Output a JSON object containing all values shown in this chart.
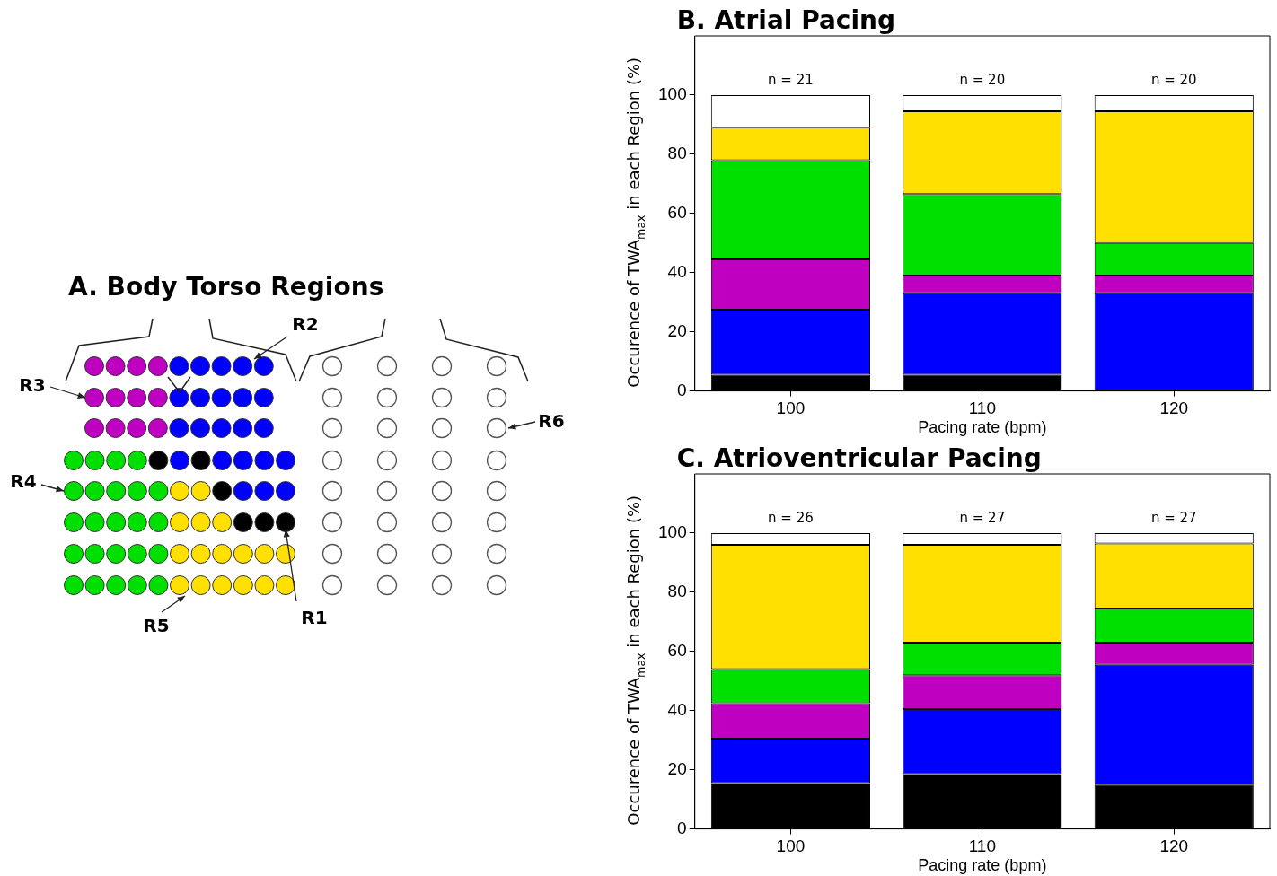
{
  "chart_data": [
    {
      "type": "other",
      "title": "A. Body Torso Regions",
      "annotations": [
        "R1",
        "R2",
        "R3",
        "R4",
        "R5",
        "R6"
      ]
    },
    {
      "type": "bar",
      "stacked": true,
      "title": "B. Atrial Pacing",
      "xlabel": "Pacing rate (bpm)",
      "ylabel": "Occurence of TWA$_{max}$ in each Region (%)",
      "categories": [
        "100",
        "110",
        "120"
      ],
      "series": [
        {
          "type": "bar",
          "color": "#000000",
          "values": [
            5.5,
            5.5,
            0
          ]
        },
        {
          "type": "bar",
          "color": "#0000ff",
          "values": [
            22,
            27.5,
            33
          ]
        },
        {
          "type": "bar",
          "color": "#c000c0",
          "values": [
            17,
            6,
            6
          ]
        },
        {
          "type": "bar",
          "color": "#00e000",
          "values": [
            33.5,
            27.5,
            11
          ]
        },
        {
          "type": "bar",
          "color": "#ffe000",
          "values": [
            11,
            28,
            44.5
          ]
        },
        {
          "type": "bar",
          "color": "#ffffff",
          "values": [
            11,
            5.5,
            5.5
          ]
        }
      ],
      "ylim": [
        0,
        120
      ],
      "yticks": [
        0,
        20,
        40,
        60,
        80,
        100
      ],
      "grid": false,
      "annotations": [
        {
          "text": "n = 21",
          "x": "100",
          "y": 100
        },
        {
          "text": "n = 20",
          "x": "110",
          "y": 100
        },
        {
          "text": "n = 20",
          "x": "120",
          "y": 100
        }
      ]
    },
    {
      "type": "bar",
      "stacked": true,
      "title": "C. Atrioventricular Pacing",
      "xlabel": "Pacing rate (bpm)",
      "ylabel": "Occurence of TWA$_{max}$ in each Region (%)",
      "categories": [
        "100",
        "110",
        "120"
      ],
      "series": [
        {
          "type": "bar",
          "color": "#000000",
          "values": [
            15.5,
            18.5,
            15
          ]
        },
        {
          "type": "bar",
          "color": "#0000ff",
          "values": [
            15,
            22,
            40.5
          ]
        },
        {
          "type": "bar",
          "color": "#c000c0",
          "values": [
            12,
            11.5,
            7.5
          ]
        },
        {
          "type": "bar",
          "color": "#00e000",
          "values": [
            11.5,
            11,
            11.5
          ]
        },
        {
          "type": "bar",
          "color": "#ffe000",
          "values": [
            42,
            33,
            22
          ]
        },
        {
          "type": "bar",
          "color": "#ffffff",
          "values": [
            4,
            4,
            3.5
          ]
        }
      ],
      "ylim": [
        0,
        120
      ],
      "yticks": [
        0,
        20,
        40,
        60,
        80,
        100
      ],
      "grid": false,
      "annotations": [
        {
          "text": "n = 26",
          "x": "100",
          "y": 100
        },
        {
          "text": "n = 27",
          "x": "110",
          "y": 100
        },
        {
          "text": "n = 27",
          "x": "120",
          "y": 100
        }
      ]
    }
  ]
}
